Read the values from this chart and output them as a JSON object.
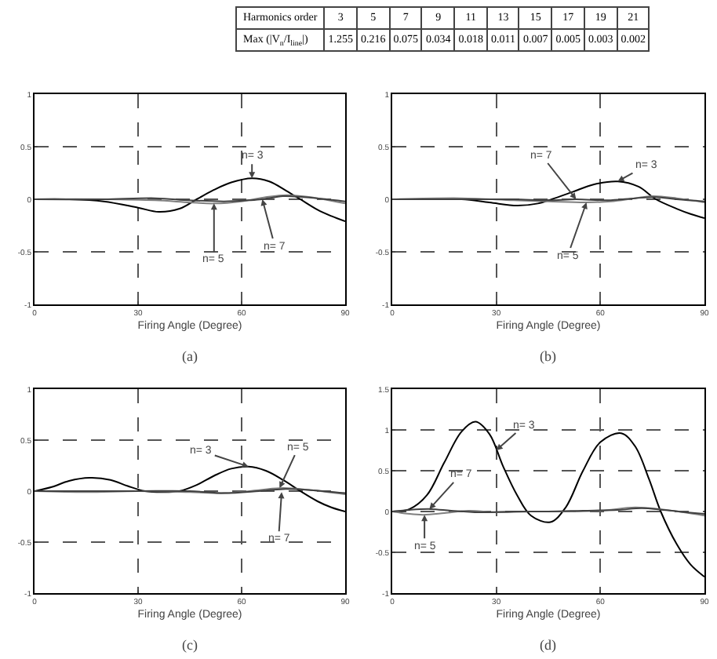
{
  "chart_data": [
    {
      "type": "heatmap",
      "xlabel": "Harmonics order",
      "categories": [
        "3",
        "5",
        "7",
        "9",
        "11",
        "13",
        "15",
        "17",
        "19",
        "21"
      ],
      "y_categories": [
        "Max (|V$_{n}$/I$_{line}$|)"
      ],
      "cells": [
        [
          1.255,
          0.216,
          0.075,
          0.034,
          0.018,
          0.011,
          0.007,
          0.005,
          0.003,
          0.002
        ]
      ],
      "data_labels": true
    },
    {
      "type": "line",
      "title": "(a)",
      "xlabel": "Firing Angle (Degree)",
      "xlim": [
        0,
        90
      ],
      "xticks": [
        0,
        30,
        60,
        90
      ],
      "ylim": [
        -1,
        1
      ],
      "yticks": [
        -1,
        -0.5,
        0,
        0.5,
        1
      ],
      "grid": true,
      "series": [
        {
          "color": "#000000",
          "x": [
            0,
            10,
            20,
            30,
            36,
            42,
            47,
            52,
            57,
            63,
            68,
            73,
            77,
            82,
            86,
            90
          ],
          "values": [
            0,
            0,
            -0.02,
            -0.08,
            -0.12,
            -0.09,
            0,
            0.09,
            0.16,
            0.2,
            0.17,
            0.08,
            0,
            -0.1,
            -0.16,
            -0.21
          ]
        },
        {
          "color": "#808080",
          "x": [
            0,
            20,
            35,
            45,
            52,
            60,
            67,
            73,
            80,
            90
          ],
          "values": [
            0,
            0,
            -0.01,
            -0.03,
            -0.04,
            -0.02,
            0.02,
            0.04,
            0.02,
            -0.04
          ]
        },
        {
          "color": "#404040",
          "x": [
            0,
            20,
            35,
            45,
            55,
            62,
            66,
            72,
            78,
            90
          ],
          "values": [
            0,
            0,
            0.01,
            -0.01,
            -0.02,
            -0.01,
            0,
            0.03,
            0.02,
            -0.02
          ]
        }
      ],
      "annotations": [
        {
          "text": "n= 3",
          "x": 63,
          "y": 0.2
        },
        {
          "text": "n= 5",
          "x": 52,
          "y": -0.04
        },
        {
          "text": "n= 7",
          "x": 66,
          "y": 0
        }
      ]
    },
    {
      "type": "line",
      "title": "(b)",
      "xlabel": "Firing Angle (Degree)",
      "xlim": [
        0,
        90
      ],
      "xticks": [
        0,
        30,
        60,
        90
      ],
      "ylim": [
        -1,
        1
      ],
      "yticks": [
        -1,
        -0.5,
        0,
        0.5,
        1
      ],
      "grid": true,
      "series": [
        {
          "color": "#000000",
          "x": [
            0,
            10,
            20,
            28,
            36,
            42,
            46,
            52,
            58,
            65,
            71,
            76,
            82,
            86,
            90
          ],
          "values": [
            0,
            0,
            0,
            -0.03,
            -0.06,
            -0.04,
            0,
            0.07,
            0.14,
            0.17,
            0.12,
            0,
            -0.09,
            -0.14,
            -0.18
          ]
        },
        {
          "color": "#808080",
          "x": [
            0,
            20,
            35,
            45,
            56,
            63,
            70,
            75,
            82,
            90
          ],
          "values": [
            0,
            0.01,
            -0.01,
            -0.02,
            -0.03,
            -0.02,
            0.01,
            0.03,
            0.01,
            -0.03
          ]
        },
        {
          "color": "#404040",
          "x": [
            0,
            20,
            35,
            45,
            53,
            62,
            70,
            76,
            82,
            90
          ],
          "values": [
            0,
            0,
            0,
            -0.01,
            0,
            -0.01,
            0.01,
            0.02,
            0,
            -0.02
          ]
        }
      ],
      "annotations": [
        {
          "text": "n= 7",
          "x": 53,
          "y": 0
        },
        {
          "text": "n= 3",
          "x": 65,
          "y": 0.17
        },
        {
          "text": "n= 5",
          "x": 56,
          "y": -0.03
        }
      ]
    },
    {
      "type": "line",
      "title": "(c)",
      "xlabel": "Firing Angle (Degree)",
      "xlim": [
        0,
        90
      ],
      "xticks": [
        0,
        30,
        60,
        90
      ],
      "ylim": [
        -1,
        1
      ],
      "yticks": [
        -1,
        -0.5,
        0,
        0.5,
        1
      ],
      "grid": true,
      "series": [
        {
          "color": "#000000",
          "x": [
            0,
            5,
            10,
            16,
            22,
            27,
            32,
            37,
            42,
            47,
            52,
            57,
            62,
            67,
            72,
            77,
            82,
            86,
            90
          ],
          "values": [
            0,
            0.04,
            0.1,
            0.13,
            0.11,
            0.05,
            0,
            -0.01,
            0,
            0.06,
            0.15,
            0.22,
            0.24,
            0.2,
            0.11,
            0,
            -0.1,
            -0.16,
            -0.2
          ]
        },
        {
          "color": "#808080",
          "x": [
            0,
            15,
            30,
            45,
            55,
            65,
            72,
            80,
            90
          ],
          "values": [
            0,
            -0.01,
            0,
            -0.01,
            -0.02,
            0.01,
            0.03,
            0.01,
            -0.03
          ]
        },
        {
          "color": "#404040",
          "x": [
            0,
            15,
            30,
            45,
            55,
            65,
            72,
            80,
            90
          ],
          "values": [
            0,
            0,
            0,
            0,
            -0.02,
            0,
            0.02,
            0.01,
            -0.02
          ]
        }
      ],
      "annotations": [
        {
          "text": "n= 3",
          "x": 62,
          "y": 0.24
        },
        {
          "text": "n= 5",
          "x": 71,
          "y": 0.03
        },
        {
          "text": "n= 7",
          "x": 71.6,
          "y": -0.01
        }
      ]
    },
    {
      "type": "line",
      "title": "(d)",
      "xlabel": "Firing Angle (Degree)",
      "xlim": [
        0,
        90
      ],
      "xticks": [
        0,
        30,
        60,
        90
      ],
      "ylim": [
        -1,
        1.5
      ],
      "yticks": [
        -1,
        -0.5,
        0,
        0.5,
        1,
        1.5
      ],
      "grid": true,
      "series": [
        {
          "color": "#000000",
          "x": [
            0,
            5,
            10,
            15,
            20,
            24,
            28,
            32,
            36,
            40,
            45.6,
            50,
            55,
            60,
            66,
            70,
            74,
            77.4,
            82,
            86,
            90
          ],
          "values": [
            0,
            0.03,
            0.2,
            0.6,
            0.98,
            1.1,
            0.95,
            0.55,
            0.2,
            -0.05,
            -0.13,
            0.05,
            0.5,
            0.85,
            0.96,
            0.8,
            0.4,
            0,
            -0.4,
            -0.65,
            -0.8
          ]
        },
        {
          "color": "#808080",
          "x": [
            0,
            5,
            9,
            15,
            22,
            30,
            40,
            50,
            60,
            70,
            77,
            84,
            90
          ],
          "values": [
            0,
            -0.03,
            -0.04,
            -0.02,
            0.01,
            -0.01,
            0,
            0,
            0.01,
            0.05,
            0.03,
            -0.01,
            -0.05
          ]
        },
        {
          "color": "#404040",
          "x": [
            0,
            5,
            11,
            17,
            25,
            35,
            45,
            55,
            65,
            72,
            78,
            90
          ],
          "values": [
            0,
            0.02,
            0.03,
            0.01,
            -0.01,
            0,
            0,
            0.01,
            0.02,
            0.04,
            0.02,
            -0.03
          ]
        }
      ],
      "annotations": [
        {
          "text": "n= 3",
          "x": 30,
          "y": 0.75
        },
        {
          "text": "n= 7",
          "x": 10.7,
          "y": 0.03
        },
        {
          "text": "n= 5",
          "x": 9.3,
          "y": -0.04
        }
      ]
    }
  ]
}
